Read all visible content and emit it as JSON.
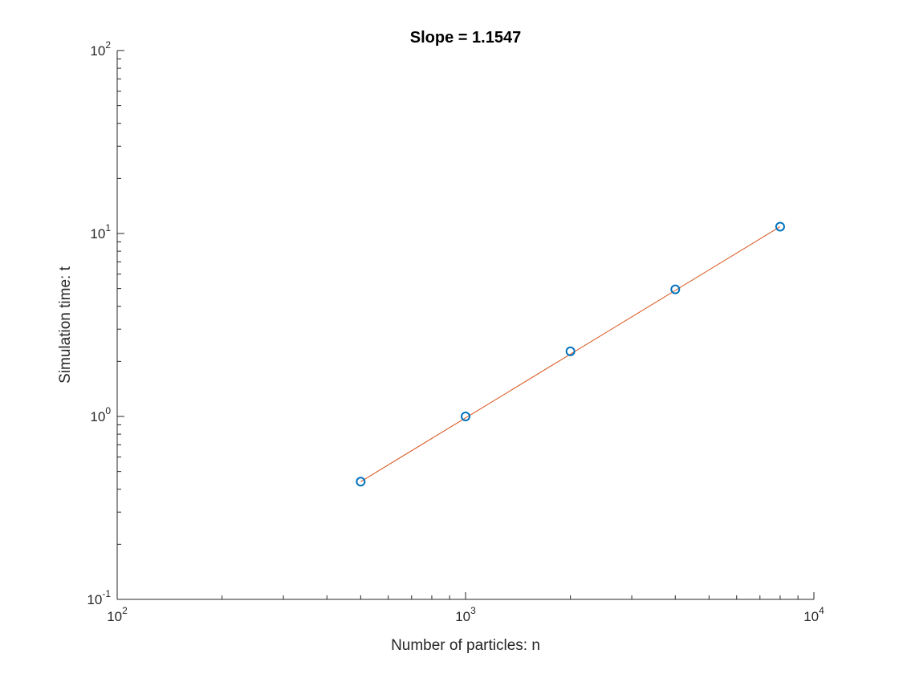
{
  "chart_data": {
    "type": "scatter",
    "title": "Slope = 1.1547",
    "xlabel": "Number of particles: n",
    "ylabel": "Simulation time: t",
    "x_scale": "log",
    "y_scale": "log",
    "xlim": [
      100,
      10000
    ],
    "ylim": [
      0.1,
      100
    ],
    "x_ticks": [
      {
        "value": 100,
        "base": "10",
        "exp": "2"
      },
      {
        "value": 1000,
        "base": "10",
        "exp": "3"
      },
      {
        "value": 10000,
        "base": "10",
        "exp": "4"
      }
    ],
    "y_ticks": [
      {
        "value": 0.1,
        "base": "10",
        "exp": "-1"
      },
      {
        "value": 1,
        "base": "10",
        "exp": "0"
      },
      {
        "value": 10,
        "base": "10",
        "exp": "1"
      },
      {
        "value": 100,
        "base": "10",
        "exp": "2"
      }
    ],
    "grid": false,
    "series": [
      {
        "kind": "markers",
        "marker": "circle",
        "color": "#0072BD",
        "x": [
          500,
          1000,
          2000,
          4000,
          8000
        ],
        "y": [
          0.44,
          1.0,
          2.27,
          4.95,
          10.9
        ]
      },
      {
        "kind": "line",
        "color": "#D95319",
        "x": [
          500,
          8000
        ],
        "y": [
          0.44,
          10.9
        ]
      }
    ]
  }
}
